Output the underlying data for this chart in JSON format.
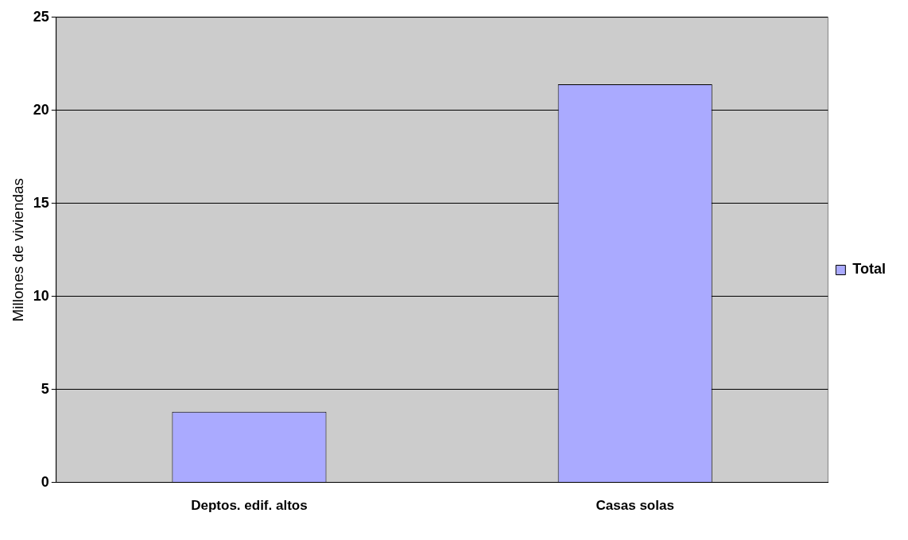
{
  "chart_data": {
    "type": "bar",
    "ylabel": "Millones de viviendas",
    "categories": [
      "Deptos. edif. altos",
      "Casas solas"
    ],
    "series": [
      {
        "name": "Total",
        "color": "#aaaaff",
        "values": [
          3.8,
          21.4
        ]
      }
    ],
    "ylim": [
      0,
      25
    ],
    "yticks": [
      0,
      5,
      10,
      15,
      20,
      25
    ],
    "grid": "y",
    "legend": "right"
  }
}
